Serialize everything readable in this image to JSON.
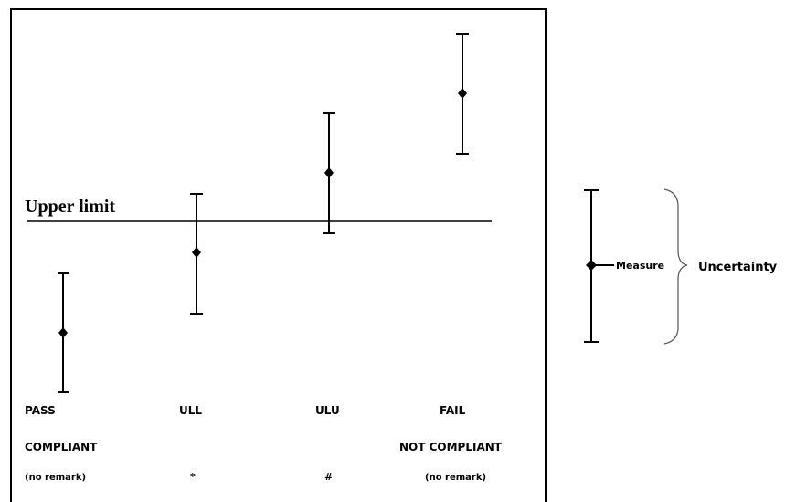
{
  "upper_limit_label": "Upper limit",
  "columns": [
    {
      "status": "PASS",
      "compliance": "COMPLIANT",
      "remark": "(no remark)",
      "position": "below"
    },
    {
      "status": "ULL",
      "compliance": "",
      "remark": "*",
      "position": "straddle-below"
    },
    {
      "status": "ULU",
      "compliance": "",
      "remark": "#",
      "position": "straddle-above"
    },
    {
      "status": "FAIL",
      "compliance": "NOT COMPLIANT",
      "remark": "(no remark)",
      "position": "above"
    }
  ],
  "legend": {
    "measure_label": "Measure",
    "uncertainty_label": "Uncertainty"
  }
}
